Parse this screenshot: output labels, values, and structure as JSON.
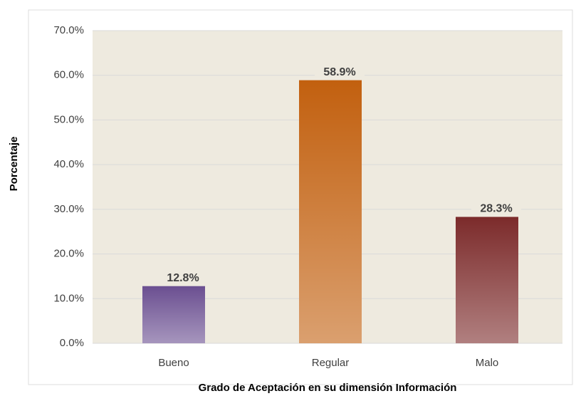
{
  "chart_data": {
    "type": "bar",
    "x_label": "Grado de Aceptación en su dimensión Información",
    "y_label": "Porcentaje",
    "categories": [
      "Bueno",
      "Regular",
      "Malo"
    ],
    "values": [
      12.8,
      58.9,
      28.3
    ],
    "value_labels": [
      "12.8%",
      "58.9%",
      "28.3%"
    ],
    "colors": [
      "#6b4f91",
      "#c2600f",
      "#7c2b2b"
    ],
    "ylim": [
      0,
      70
    ],
    "yticks": [
      {
        "value": 0,
        "label": "0.0%"
      },
      {
        "value": 10,
        "label": "10.0%"
      },
      {
        "value": 20,
        "label": "20.0%"
      },
      {
        "value": 30,
        "label": "30.0%"
      },
      {
        "value": 40,
        "label": "40.0%"
      },
      {
        "value": 50,
        "label": "50.0%"
      },
      {
        "value": 60,
        "label": "60.0%"
      },
      {
        "value": 70,
        "label": "70.0%"
      }
    ],
    "grid": true
  }
}
